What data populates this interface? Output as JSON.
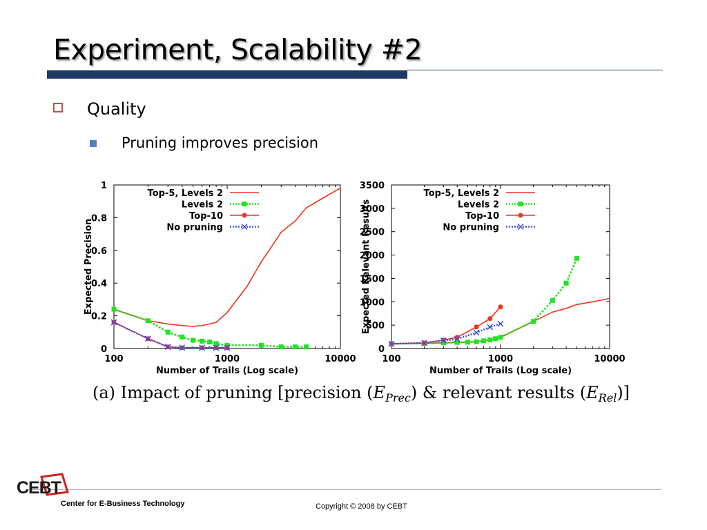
{
  "slide": {
    "title": "Experiment, Scalability #2",
    "bullet1": "Quality",
    "bullet2": "Pruning improves precision",
    "caption": {
      "prefix": "(a)  Impact of pruning [precision (",
      "e1": "E",
      "sub1": "Prec",
      "mid": ") & relevant results (",
      "e2": "E",
      "sub2": "Rel",
      "suffix": ")]"
    },
    "footer_left": "Center for E-Business Technology",
    "footer_center": "Copyright © 2008 by CEBT",
    "logo_text": "CEBT"
  },
  "colors": {
    "title_bar": "#1f3864",
    "bullet1_box": "#c0504d",
    "bullet2_square": "#4f81bd",
    "series_red": "#f2321e",
    "series_green": "#1ee61e",
    "series_blue": "#3c50f0",
    "overlap_purple": "#a040c0",
    "logo_red": "#d02020"
  },
  "chart_data": [
    {
      "type": "line",
      "xlabel": "Number of Trails (Log scale)",
      "ylabel": "Expected Precision",
      "xscale": "log",
      "xlim": [
        100,
        10000
      ],
      "ylim": [
        0,
        1
      ],
      "xticks": [
        100,
        1000,
        10000
      ],
      "xtick_labels": [
        "100",
        "1000",
        "10000"
      ],
      "yticks": [
        0,
        0.2,
        0.4,
        0.6,
        0.8,
        1
      ],
      "ytick_labels": [
        "0",
        "0.2",
        "0.4",
        "0.6",
        "0.8",
        "1"
      ],
      "legend_position": "top-left",
      "series": [
        {
          "name": "Top-5, Levels 2",
          "color": "#f2321e",
          "style": "solid",
          "marker": "none",
          "x": [
            100,
            200,
            300,
            400,
            500,
            600,
            700,
            800,
            1000,
            1500,
            2000,
            3000,
            4000,
            5000,
            7000,
            10000
          ],
          "y": [
            0.24,
            0.17,
            0.15,
            0.14,
            0.135,
            0.14,
            0.15,
            0.16,
            0.22,
            0.38,
            0.53,
            0.71,
            0.78,
            0.86,
            0.92,
            0.98
          ]
        },
        {
          "name": "Levels 2",
          "color": "#1ee61e",
          "style": "dotted",
          "marker": "square",
          "x": [
            100,
            200,
            300,
            400,
            500,
            600,
            700,
            800,
            1000,
            2000,
            3000,
            4000,
            5000
          ],
          "y": [
            0.24,
            0.17,
            0.1,
            0.07,
            0.05,
            0.045,
            0.04,
            0.03,
            0.02,
            0.02,
            0.01,
            0.01,
            0.01
          ]
        },
        {
          "name": "Top-10",
          "color": "#f2321e",
          "style": "solid",
          "marker": "circle",
          "x": [
            100,
            200,
            300,
            400,
            600,
            800,
            1000
          ],
          "y": [
            0.16,
            0.06,
            0.01,
            0.005,
            0.005,
            0.005,
            0.005
          ]
        },
        {
          "name": "No pruning",
          "color": "#3c50f0",
          "style": "dotted",
          "marker": "x",
          "x": [
            100,
            200,
            300,
            400,
            600,
            800,
            1000
          ],
          "y": [
            0.16,
            0.06,
            0.01,
            0.005,
            0.005,
            0.005,
            0.005
          ]
        }
      ]
    },
    {
      "type": "line",
      "xlabel": "Number of Trails (Log scale)",
      "ylabel": "Expected Relevant Results",
      "xscale": "log",
      "xlim": [
        100,
        10000
      ],
      "ylim": [
        0,
        3500
      ],
      "xticks": [
        100,
        1000,
        10000
      ],
      "xtick_labels": [
        "100",
        "1000",
        "10000"
      ],
      "yticks": [
        0,
        500,
        1000,
        1500,
        2000,
        2500,
        3000,
        3500
      ],
      "ytick_labels": [
        "0",
        "500",
        "1000",
        "1500",
        "2000",
        "2500",
        "3000",
        "3500"
      ],
      "legend_position": "top-left",
      "series": [
        {
          "name": "Top-5, Levels 2",
          "color": "#f2321e",
          "style": "solid",
          "marker": "none",
          "x": [
            100,
            200,
            300,
            400,
            500,
            600,
            700,
            800,
            900,
            1000,
            2000,
            3000,
            4000,
            5000,
            7000,
            10000
          ],
          "y": [
            100,
            110,
            120,
            130,
            135,
            145,
            165,
            185,
            210,
            240,
            580,
            780,
            860,
            940,
            1000,
            1070
          ]
        },
        {
          "name": "Levels 2",
          "color": "#1ee61e",
          "style": "dotted",
          "marker": "square",
          "x": [
            100,
            200,
            300,
            400,
            500,
            600,
            700,
            800,
            900,
            1000,
            2000,
            3000,
            4000,
            5000
          ],
          "y": [
            100,
            110,
            120,
            130,
            135,
            145,
            165,
            185,
            210,
            240,
            580,
            1030,
            1400,
            1930
          ]
        },
        {
          "name": "Top-10",
          "color": "#f2321e",
          "style": "solid",
          "marker": "circle",
          "x": [
            100,
            200,
            300,
            400,
            600,
            800,
            1000
          ],
          "y": [
            100,
            120,
            180,
            240,
            460,
            640,
            890
          ]
        },
        {
          "name": "No pruning",
          "color": "#3c50f0",
          "style": "dotted",
          "marker": "x",
          "x": [
            100,
            200,
            300,
            400,
            600,
            800,
            1000
          ],
          "y": [
            100,
            120,
            170,
            200,
            340,
            460,
            530
          ]
        }
      ]
    }
  ]
}
